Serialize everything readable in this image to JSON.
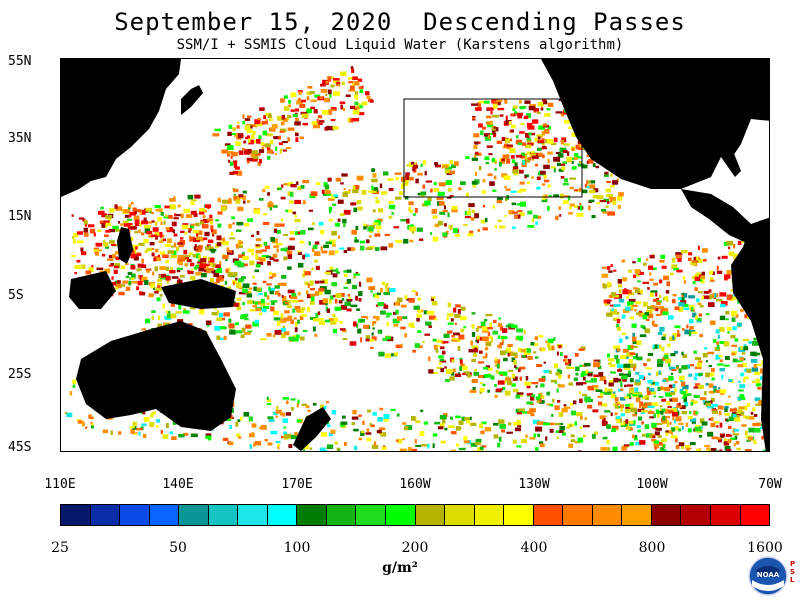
{
  "title": "September 15, 2020  Descending Passes",
  "subtitle": "SSM/I + SSMIS Cloud Liquid Water (Karstens algorithm)",
  "map": {
    "lat_labels": [
      "55N",
      "35N",
      "15N",
      "5S",
      "25S",
      "45S"
    ],
    "lon_labels": [
      "110E",
      "140E",
      "170E",
      "160W",
      "130W",
      "100W",
      "70W"
    ],
    "land_color": "#000000",
    "no_data_color": "#ffffff"
  },
  "colorbar": {
    "colors": [
      "#08196b",
      "#0a2ea8",
      "#0a4be6",
      "#0a64ff",
      "#0a9696",
      "#14c3c3",
      "#1ee6e6",
      "#00ffff",
      "#007d00",
      "#14b414",
      "#1edc1e",
      "#00ff00",
      "#b4b400",
      "#dcdc00",
      "#f0f000",
      "#ffff00",
      "#ff5000",
      "#ff7800",
      "#ff8c00",
      "#ffa000",
      "#8c0000",
      "#b40000",
      "#dc0000",
      "#ff0000"
    ],
    "labels": [
      "25",
      "50",
      "100",
      "200",
      "400",
      "800",
      "1600"
    ],
    "units": "g/m²"
  },
  "logo": {
    "text": "NOAA",
    "side_text": "P S L"
  }
}
